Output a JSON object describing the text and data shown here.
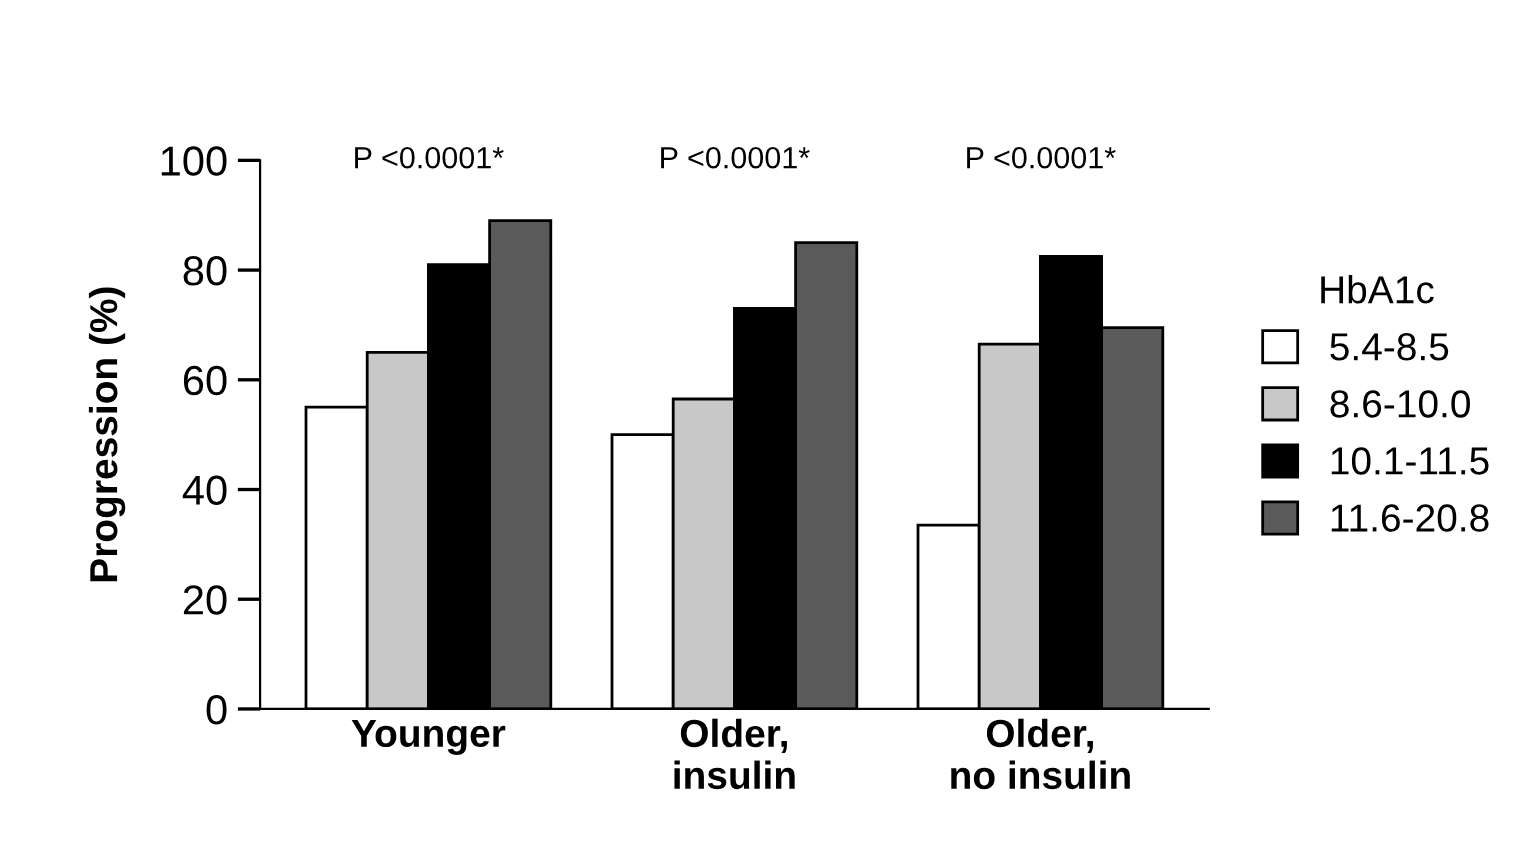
{
  "chart_data": {
    "type": "bar",
    "ylabel": "Progression (%)",
    "legend_title": "HbA1c",
    "legend": "right",
    "categories": [
      "Younger",
      "Older,\ninsulin",
      "Older,\nno insulin"
    ],
    "series": [
      {
        "name": "5.4-8.5",
        "color": "#ffffff",
        "values": [
          55,
          50,
          33.5
        ]
      },
      {
        "name": "8.6-10.0",
        "color": "#c8c8c8",
        "values": [
          65,
          56.5,
          66.5
        ]
      },
      {
        "name": "10.1-11.5",
        "color": "#000000",
        "values": [
          81,
          73,
          82.5
        ]
      },
      {
        "name": "11.6-20.8",
        "color": "#5a5a5a",
        "values": [
          89,
          85,
          69.5
        ]
      }
    ],
    "annotations": [
      "P <0.0001*",
      "P <0.0001*",
      "P <0.0001*"
    ],
    "ylim": [
      0,
      100
    ],
    "yticks": [
      0,
      20,
      40,
      60,
      80,
      100
    ],
    "grid": false
  }
}
